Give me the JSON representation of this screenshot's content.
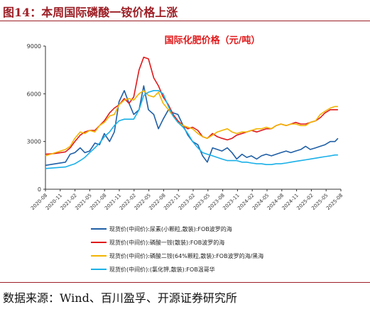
{
  "figure": {
    "header": "图14：本周国际磷酸一铵价格上涨",
    "source": "数据来源：Wind、百川盈孚、开源证券研究所"
  },
  "chart_data": {
    "type": "line",
    "title": "国际化肥价格（元/吨）",
    "xlabel": "",
    "ylabel": "",
    "ylim": [
      0,
      9000
    ],
    "yticks": [
      "0",
      "3000",
      "6000",
      "9000"
    ],
    "xticks": [
      "2020-08",
      "2020-11",
      "2021-02",
      "2021-05",
      "2021-08",
      "2021-11",
      "2022-02",
      "2022-05",
      "2022-08",
      "2022-11",
      "2023-02",
      "2023-05",
      "2023-08",
      "2023-11",
      "2024-02",
      "2024-05",
      "2024-08",
      "2024-11",
      "2025-02",
      "2025-05",
      "2025-08"
    ],
    "x_range": [
      2020.58,
      2025.6
    ],
    "grid": false,
    "legend_position": "bottom",
    "series": [
      {
        "name": "现货价(中间价):尿素(小颗粒,散装):FOB波罗的海",
        "color": "#1f5fa6",
        "points": [
          [
            2020.58,
            1500
          ],
          [
            2020.75,
            1600
          ],
          [
            2020.92,
            1700
          ],
          [
            2021.0,
            2200
          ],
          [
            2021.08,
            2300
          ],
          [
            2021.17,
            2600
          ],
          [
            2021.25,
            2300
          ],
          [
            2021.33,
            2400
          ],
          [
            2021.42,
            2900
          ],
          [
            2021.5,
            2800
          ],
          [
            2021.58,
            3500
          ],
          [
            2021.67,
            3000
          ],
          [
            2021.75,
            3600
          ],
          [
            2021.83,
            5500
          ],
          [
            2021.92,
            6200
          ],
          [
            2022.0,
            5400
          ],
          [
            2022.08,
            4700
          ],
          [
            2022.17,
            5000
          ],
          [
            2022.25,
            6500
          ],
          [
            2022.33,
            5000
          ],
          [
            2022.42,
            4700
          ],
          [
            2022.5,
            3800
          ],
          [
            2022.58,
            4400
          ],
          [
            2022.67,
            5000
          ],
          [
            2022.75,
            4800
          ],
          [
            2022.83,
            4700
          ],
          [
            2022.92,
            4000
          ],
          [
            2023.0,
            3400
          ],
          [
            2023.08,
            3000
          ],
          [
            2023.17,
            2800
          ],
          [
            2023.25,
            2100
          ],
          [
            2023.33,
            1700
          ],
          [
            2023.42,
            2600
          ],
          [
            2023.5,
            2500
          ],
          [
            2023.58,
            2400
          ],
          [
            2023.67,
            2600
          ],
          [
            2023.75,
            2300
          ],
          [
            2023.83,
            1900
          ],
          [
            2023.92,
            2200
          ],
          [
            2024.0,
            2000
          ],
          [
            2024.08,
            2100
          ],
          [
            2024.17,
            1900
          ],
          [
            2024.25,
            2100
          ],
          [
            2024.33,
            2200
          ],
          [
            2024.42,
            2100
          ],
          [
            2024.5,
            2200
          ],
          [
            2024.58,
            2300
          ],
          [
            2024.67,
            2400
          ],
          [
            2024.75,
            2300
          ],
          [
            2024.83,
            2400
          ],
          [
            2024.92,
            2500
          ],
          [
            2025.0,
            2700
          ],
          [
            2025.08,
            2500
          ],
          [
            2025.17,
            2600
          ],
          [
            2025.25,
            2700
          ],
          [
            2025.33,
            2800
          ],
          [
            2025.42,
            3000
          ],
          [
            2025.5,
            3000
          ],
          [
            2025.55,
            3200
          ]
        ]
      },
      {
        "name": "现货价(中间价):磷酸一铵(散装):FOB波罗的海",
        "color": "#e0191b",
        "points": [
          [
            2020.58,
            2200
          ],
          [
            2020.75,
            2250
          ],
          [
            2020.92,
            2350
          ],
          [
            2021.0,
            2600
          ],
          [
            2021.08,
            3000
          ],
          [
            2021.17,
            3400
          ],
          [
            2021.25,
            3600
          ],
          [
            2021.33,
            3700
          ],
          [
            2021.42,
            3700
          ],
          [
            2021.5,
            4000
          ],
          [
            2021.58,
            4300
          ],
          [
            2021.67,
            4800
          ],
          [
            2021.75,
            5100
          ],
          [
            2021.83,
            5300
          ],
          [
            2021.92,
            5700
          ],
          [
            2022.0,
            5400
          ],
          [
            2022.08,
            5800
          ],
          [
            2022.17,
            7500
          ],
          [
            2022.25,
            8300
          ],
          [
            2022.33,
            8200
          ],
          [
            2022.42,
            7000
          ],
          [
            2022.5,
            6500
          ],
          [
            2022.58,
            5800
          ],
          [
            2022.67,
            5300
          ],
          [
            2022.75,
            4700
          ],
          [
            2022.83,
            4300
          ],
          [
            2022.92,
            4000
          ],
          [
            2023.0,
            3800
          ],
          [
            2023.08,
            3900
          ],
          [
            2023.17,
            3700
          ],
          [
            2023.25,
            3300
          ],
          [
            2023.33,
            3200
          ],
          [
            2023.42,
            3500
          ],
          [
            2023.5,
            3300
          ],
          [
            2023.58,
            3200
          ],
          [
            2023.67,
            3100
          ],
          [
            2023.75,
            3200
          ],
          [
            2023.83,
            3400
          ],
          [
            2023.92,
            3500
          ],
          [
            2024.0,
            3600
          ],
          [
            2024.08,
            3700
          ],
          [
            2024.17,
            3600
          ],
          [
            2024.25,
            3700
          ],
          [
            2024.33,
            3800
          ],
          [
            2024.42,
            3800
          ],
          [
            2024.5,
            4000
          ],
          [
            2024.58,
            4100
          ],
          [
            2024.67,
            4000
          ],
          [
            2024.75,
            4100
          ],
          [
            2024.83,
            4200
          ],
          [
            2024.92,
            4100
          ],
          [
            2025.0,
            4100
          ],
          [
            2025.08,
            4200
          ],
          [
            2025.17,
            4300
          ],
          [
            2025.25,
            4500
          ],
          [
            2025.33,
            4800
          ],
          [
            2025.42,
            5000
          ],
          [
            2025.5,
            5000
          ],
          [
            2025.55,
            5000
          ]
        ]
      },
      {
        "name": "现货价(中间价):磷酸二铵(64%颗粒,散装):FOB波罗的海/黑海",
        "color": "#f2b400",
        "points": [
          [
            2020.58,
            2100
          ],
          [
            2020.75,
            2300
          ],
          [
            2020.92,
            2500
          ],
          [
            2021.0,
            2700
          ],
          [
            2021.08,
            3200
          ],
          [
            2021.17,
            3600
          ],
          [
            2021.25,
            3500
          ],
          [
            2021.33,
            3700
          ],
          [
            2021.42,
            3600
          ],
          [
            2021.5,
            4000
          ],
          [
            2021.58,
            4200
          ],
          [
            2021.67,
            4600
          ],
          [
            2021.75,
            4700
          ],
          [
            2021.83,
            5300
          ],
          [
            2021.92,
            5600
          ],
          [
            2022.0,
            5700
          ],
          [
            2022.08,
            5600
          ],
          [
            2022.17,
            6000
          ],
          [
            2022.25,
            6200
          ],
          [
            2022.33,
            5900
          ],
          [
            2022.42,
            5800
          ],
          [
            2022.5,
            6100
          ],
          [
            2022.58,
            5400
          ],
          [
            2022.67,
            5000
          ],
          [
            2022.75,
            4600
          ],
          [
            2022.83,
            4200
          ],
          [
            2022.92,
            4000
          ],
          [
            2023.0,
            3900
          ],
          [
            2023.08,
            3800
          ],
          [
            2023.17,
            3500
          ],
          [
            2023.25,
            3300
          ],
          [
            2023.33,
            3200
          ],
          [
            2023.42,
            3400
          ],
          [
            2023.5,
            3600
          ],
          [
            2023.58,
            3700
          ],
          [
            2023.67,
            3800
          ],
          [
            2023.75,
            3600
          ],
          [
            2023.83,
            3500
          ],
          [
            2023.92,
            3600
          ],
          [
            2024.0,
            3600
          ],
          [
            2024.08,
            3700
          ],
          [
            2024.17,
            3800
          ],
          [
            2024.25,
            3800
          ],
          [
            2024.33,
            3900
          ],
          [
            2024.42,
            3800
          ],
          [
            2024.5,
            4000
          ],
          [
            2024.58,
            4100
          ],
          [
            2024.67,
            4000
          ],
          [
            2024.75,
            4100
          ],
          [
            2024.83,
            4100
          ],
          [
            2024.92,
            4000
          ],
          [
            2025.0,
            4000
          ],
          [
            2025.08,
            4200
          ],
          [
            2025.17,
            4300
          ],
          [
            2025.25,
            4700
          ],
          [
            2025.33,
            4900
          ],
          [
            2025.42,
            5100
          ],
          [
            2025.5,
            5200
          ],
          [
            2025.55,
            5200
          ]
        ]
      },
      {
        "name": "现货价(中间价):(氯化钾,散装):FOB温哥华",
        "color": "#1ab0e8",
        "points": [
          [
            2020.58,
            1300
          ],
          [
            2020.75,
            1350
          ],
          [
            2020.92,
            1400
          ],
          [
            2021.0,
            1500
          ],
          [
            2021.08,
            1600
          ],
          [
            2021.17,
            1800
          ],
          [
            2021.25,
            2000
          ],
          [
            2021.33,
            2300
          ],
          [
            2021.42,
            2600
          ],
          [
            2021.5,
            2900
          ],
          [
            2021.58,
            3300
          ],
          [
            2021.67,
            3600
          ],
          [
            2021.75,
            4000
          ],
          [
            2021.83,
            4300
          ],
          [
            2021.92,
            4400
          ],
          [
            2022.0,
            4400
          ],
          [
            2022.08,
            4400
          ],
          [
            2022.17,
            5000
          ],
          [
            2022.25,
            5900
          ],
          [
            2022.33,
            6100
          ],
          [
            2022.42,
            6200
          ],
          [
            2022.5,
            6200
          ],
          [
            2022.58,
            6000
          ],
          [
            2022.67,
            5200
          ],
          [
            2022.75,
            4600
          ],
          [
            2022.83,
            4200
          ],
          [
            2022.92,
            3900
          ],
          [
            2023.0,
            3500
          ],
          [
            2023.08,
            3000
          ],
          [
            2023.17,
            2600
          ],
          [
            2023.25,
            2300
          ],
          [
            2023.33,
            2200
          ],
          [
            2023.42,
            2100
          ],
          [
            2023.5,
            2000
          ],
          [
            2023.58,
            1900
          ],
          [
            2023.67,
            1800
          ],
          [
            2023.75,
            1800
          ],
          [
            2023.83,
            1800
          ],
          [
            2023.92,
            1700
          ],
          [
            2024.0,
            1700
          ],
          [
            2024.08,
            1650
          ],
          [
            2024.17,
            1600
          ],
          [
            2024.25,
            1600
          ],
          [
            2024.33,
            1550
          ],
          [
            2024.42,
            1550
          ],
          [
            2024.5,
            1600
          ],
          [
            2024.58,
            1600
          ],
          [
            2024.67,
            1650
          ],
          [
            2024.75,
            1700
          ],
          [
            2024.83,
            1750
          ],
          [
            2024.92,
            1800
          ],
          [
            2025.0,
            1850
          ],
          [
            2025.08,
            1900
          ],
          [
            2025.17,
            1950
          ],
          [
            2025.25,
            2000
          ],
          [
            2025.33,
            2050
          ],
          [
            2025.42,
            2100
          ],
          [
            2025.5,
            2150
          ],
          [
            2025.55,
            2150
          ]
        ]
      }
    ]
  }
}
